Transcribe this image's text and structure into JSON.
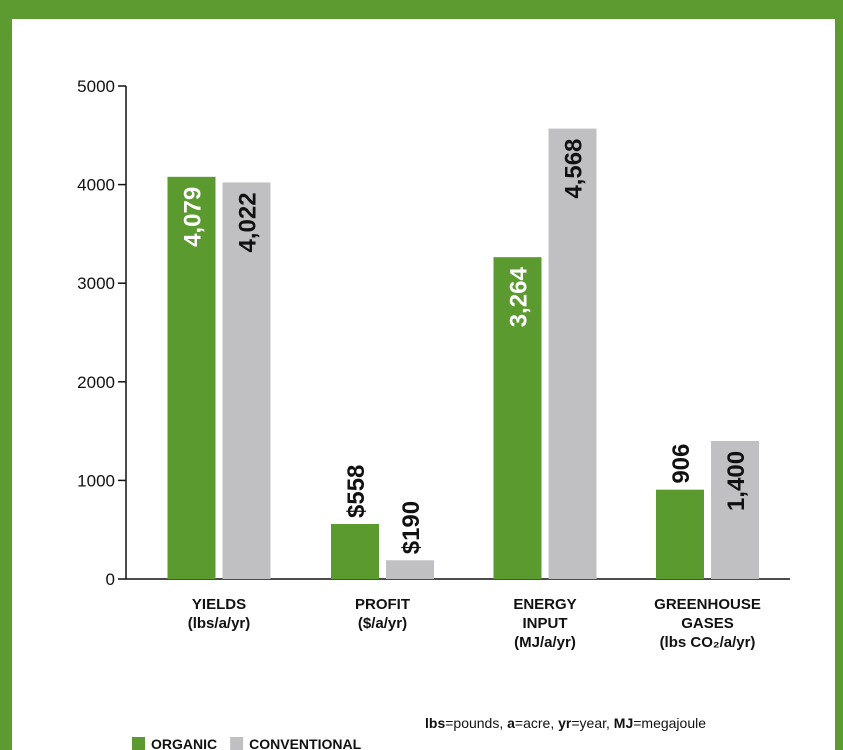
{
  "chart_data": {
    "type": "bar",
    "categories": [
      [
        "YIELDS",
        "(lbs/a/yr)"
      ],
      [
        "PROFIT",
        "($/a/yr)"
      ],
      [
        "ENERGY",
        "INPUT",
        "(MJ/a/yr)"
      ],
      [
        "GREENHOUSE",
        "GASES",
        "(lbs CO₂/a/yr)"
      ]
    ],
    "series": [
      {
        "name": "ORGANIC",
        "color": "#5b9a2f",
        "values": [
          4079,
          558,
          3264,
          906
        ],
        "value_labels": [
          "4,079",
          "$558",
          "3,264",
          "906"
        ]
      },
      {
        "name": "CONVENTIONAL",
        "color": "#c0c0c2",
        "values": [
          4022,
          190,
          4568,
          1400
        ],
        "value_labels": [
          "4,022",
          "$190",
          "4,568",
          "1,400"
        ]
      }
    ],
    "ylim": [
      0,
      5000
    ],
    "yticks": [
      0,
      1000,
      2000,
      3000,
      4000,
      5000
    ],
    "footnote": [
      [
        "lbs",
        "=pounds, "
      ],
      [
        "a",
        "=acre, "
      ],
      [
        "yr",
        "=year, "
      ],
      [
        "MJ",
        "=megajoule"
      ]
    ]
  }
}
